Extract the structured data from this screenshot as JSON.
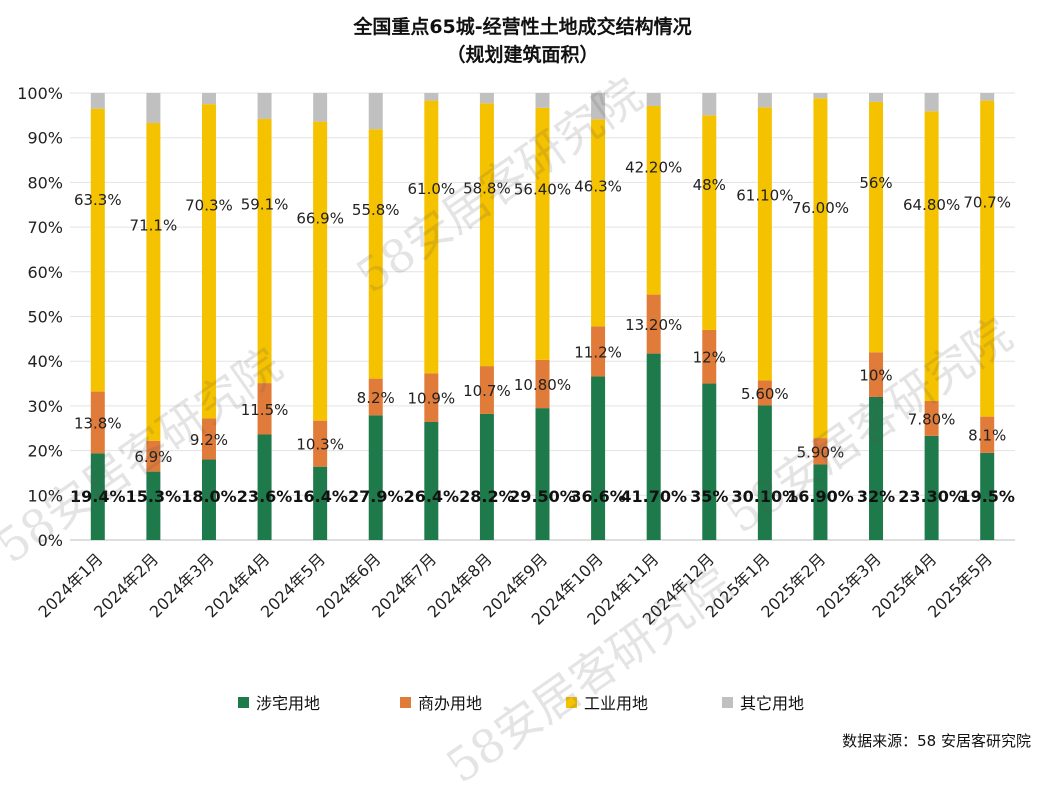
{
  "title_line1": "全国重点65城-经营性土地成交结构情况",
  "title_line2": "（规划建筑面积）",
  "source": "数据来源：58 安居客研究院",
  "watermark": "58安居客研究院",
  "colors": {
    "residential": "#1e7a4a",
    "commercial": "#e07b39",
    "industrial": "#f5c200",
    "other": "#c0c0c0"
  },
  "chart_data": {
    "type": "bar",
    "stacked": true,
    "percent": true,
    "title": "全国重点65城-经营性土地成交结构情况（规划建筑面积）",
    "ylim": [
      0,
      100
    ],
    "y_ticks": [
      "0%",
      "10%",
      "20%",
      "30%",
      "40%",
      "50%",
      "60%",
      "70%",
      "80%",
      "90%",
      "100%"
    ],
    "legend_position": "bottom",
    "categories": [
      "2024年1月",
      "2024年2月",
      "2024年3月",
      "2024年4月",
      "2024年5月",
      "2024年6月",
      "2024年7月",
      "2024年8月",
      "2024年9月",
      "2024年10月",
      "2024年11月",
      "2024年12月",
      "2025年1月",
      "2025年2月",
      "2025年3月",
      "2025年4月",
      "2025年5月"
    ],
    "series": [
      {
        "name": "涉宅用地",
        "key": "residential",
        "values": [
          19.4,
          15.3,
          18.0,
          23.6,
          16.4,
          27.9,
          26.4,
          28.2,
          29.5,
          36.6,
          41.7,
          35,
          30.1,
          16.9,
          32,
          23.3,
          19.5
        ],
        "labels": [
          "19.4%",
          "15.3%",
          "18.0%",
          "23.6%",
          "16.4%",
          "27.9%",
          "26.4%",
          "28.2%",
          "29.50%",
          "36.6%",
          "41.70%",
          "35%",
          "30.10%",
          "16.90%",
          "32%",
          "23.30%",
          "19.5%"
        ]
      },
      {
        "name": "商办用地",
        "key": "commercial",
        "values": [
          13.8,
          6.9,
          9.2,
          11.5,
          10.3,
          8.2,
          10.9,
          10.7,
          10.8,
          11.2,
          13.2,
          12,
          5.6,
          5.9,
          10,
          7.8,
          8.1
        ],
        "labels": [
          "13.8%",
          "6.9%",
          "9.2%",
          "11.5%",
          "10.3%",
          "8.2%",
          "10.9%",
          "10.7%",
          "10.80%",
          "11.2%",
          "13.20%",
          "12%",
          "5.60%",
          "5.90%",
          "10%",
          "7.80%",
          "8.1%"
        ]
      },
      {
        "name": "工业用地",
        "key": "industrial",
        "values": [
          63.3,
          71.1,
          70.3,
          59.1,
          66.9,
          55.8,
          61.0,
          58.8,
          56.4,
          46.3,
          42.2,
          48,
          61.1,
          76.0,
          56,
          64.8,
          70.7
        ],
        "labels": [
          "63.3%",
          "71.1%",
          "70.3%",
          "59.1%",
          "66.9%",
          "55.8%",
          "61.0%",
          "58.8%",
          "56.40%",
          "46.3%",
          "42.20%",
          "48%",
          "61.10%",
          "76.00%",
          "56%",
          "64.80%",
          "70.7%"
        ]
      },
      {
        "name": "其它用地",
        "key": "other",
        "values": [
          3.5,
          6.7,
          2.5,
          5.8,
          6.4,
          8.1,
          1.7,
          2.3,
          3.3,
          5.9,
          2.9,
          5,
          3.2,
          1.2,
          2,
          4.1,
          1.7
        ],
        "labels": []
      }
    ]
  }
}
